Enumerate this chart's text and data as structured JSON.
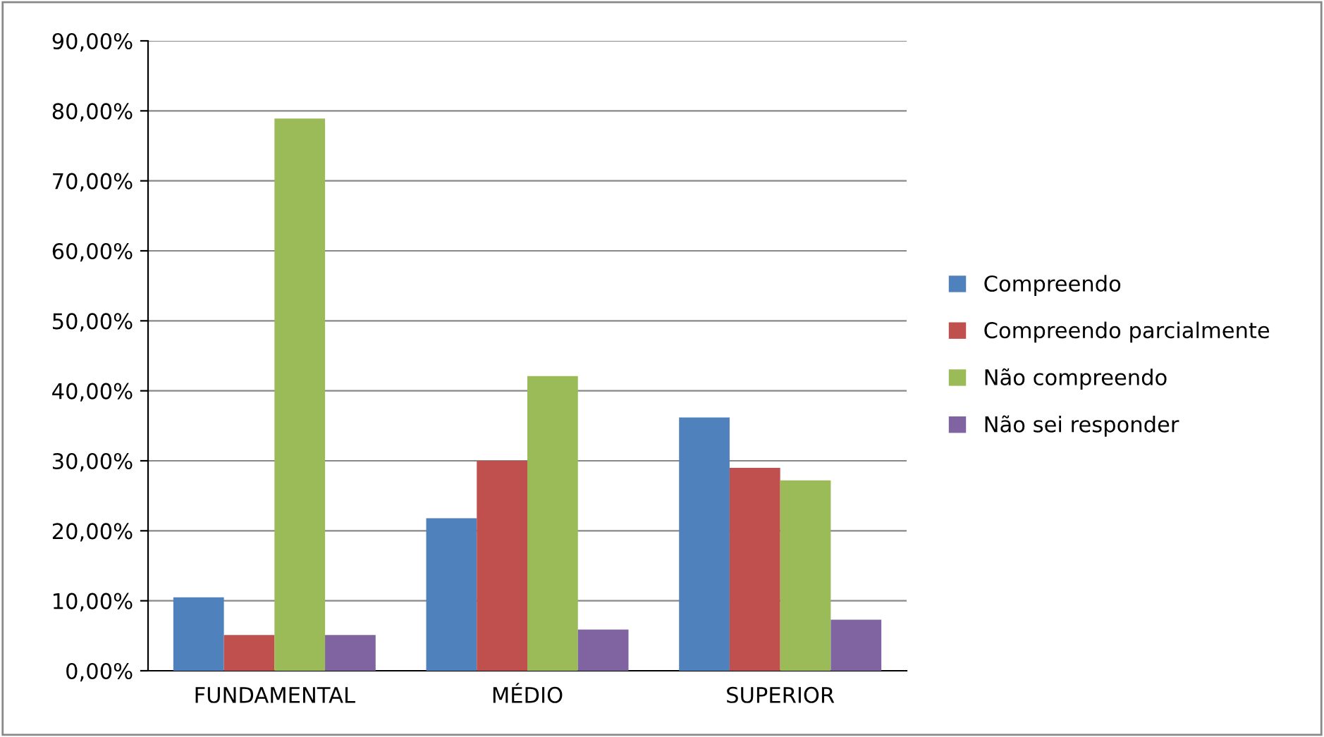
{
  "chart_data": {
    "type": "bar",
    "categories": [
      "FUNDAMENTAL",
      "MÉDIO",
      "SUPERIOR"
    ],
    "series": [
      {
        "name": "Compreendo",
        "color": "#4f81bd",
        "values": [
          10.5,
          21.8,
          36.2
        ]
      },
      {
        "name": "Compreendo parcialmente",
        "color": "#c0504d",
        "values": [
          5.1,
          30.0,
          29.0
        ]
      },
      {
        "name": "Não compreendo",
        "color": "#9bbb59",
        "values": [
          78.9,
          42.1,
          27.2
        ]
      },
      {
        "name": "Não sei responder",
        "color": "#8064a2",
        "values": [
          5.1,
          5.9,
          7.3
        ]
      }
    ],
    "ylim": [
      0,
      90
    ],
    "yticks": [
      {
        "value": 0,
        "label": "0,00%"
      },
      {
        "value": 10,
        "label": "10,00%"
      },
      {
        "value": 20,
        "label": "20,00%"
      },
      {
        "value": 30,
        "label": "30,00%"
      },
      {
        "value": 40,
        "label": "40,00%"
      },
      {
        "value": 50,
        "label": "50,00%"
      },
      {
        "value": 60,
        "label": "60,00%"
      },
      {
        "value": 70,
        "label": "70,00%"
      },
      {
        "value": 80,
        "label": "80,00%"
      },
      {
        "value": 90,
        "label": "90,00%"
      }
    ],
    "grid": "y",
    "legend": "right"
  }
}
